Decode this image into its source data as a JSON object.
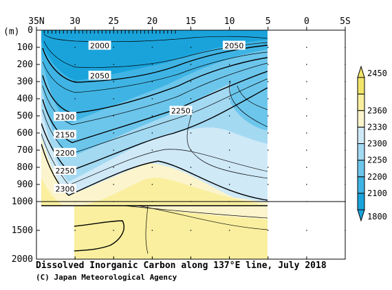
{
  "chart_data": {
    "type": "contour",
    "title": "Dissolved Inorganic Carbon along 137°E line, July 2018",
    "credit": "(C) Japan Meteorological Agency",
    "xlabel": "",
    "ylabel": "(m)",
    "x_ticks": [
      "35N",
      "30",
      "25",
      "20",
      "15",
      "10",
      "5",
      "0",
      "5S"
    ],
    "x_tick_values": [
      35,
      30,
      25,
      20,
      15,
      10,
      5,
      0,
      -5
    ],
    "xlim": [
      35,
      -5
    ],
    "x_data_range": [
      34,
      5
    ],
    "y_upper_ticks": [
      "0",
      "100",
      "200",
      "300",
      "400",
      "500",
      "600",
      "700",
      "800",
      "900",
      "1000"
    ],
    "y_lower_ticks": [
      "1500",
      "2000"
    ],
    "y_split_depth": 1000,
    "ylim": [
      0,
      2000
    ],
    "colorbar": {
      "boundaries": [
        "1800",
        "2100",
        "2200",
        "2250",
        "2300",
        "2330",
        "2360",
        "2450"
      ],
      "colors": [
        "#1aa3db",
        "#3fb4e4",
        "#6cc6ec",
        "#a4d9f2",
        "#cfe9f7",
        "#fbf4cc",
        "#f9ef9e",
        "#f1e46a"
      ],
      "top_label": "2450",
      "bottom_label": "1800"
    },
    "contour_labels": [
      {
        "text": "2000",
        "x": 26.8,
        "depth": 90
      },
      {
        "text": "2050",
        "x": 26.8,
        "depth": 265
      },
      {
        "text": "2050",
        "x": 9.4,
        "depth": 90
      },
      {
        "text": "2100",
        "x": 31.3,
        "depth": 505
      },
      {
        "text": "2150",
        "x": 31.3,
        "depth": 610
      },
      {
        "text": "2200",
        "x": 31.3,
        "depth": 715
      },
      {
        "text": "2250",
        "x": 31.3,
        "depth": 820
      },
      {
        "text": "2250",
        "x": 16.3,
        "depth": 470
      },
      {
        "text": "2300",
        "x": 31.3,
        "depth": 925
      }
    ],
    "grid": true
  }
}
